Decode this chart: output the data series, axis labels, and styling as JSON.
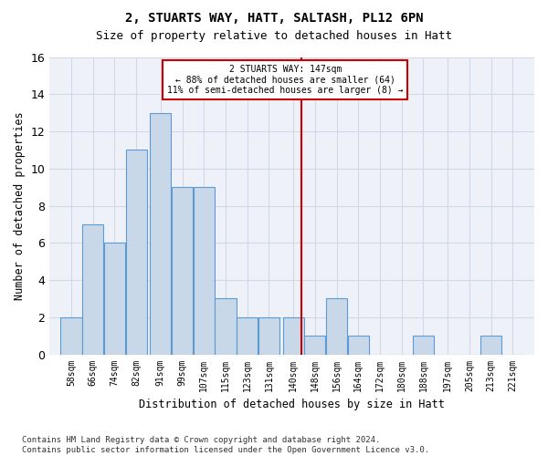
{
  "title1": "2, STUARTS WAY, HATT, SALTASH, PL12 6PN",
  "title2": "Size of property relative to detached houses in Hatt",
  "xlabel": "Distribution of detached houses by size in Hatt",
  "ylabel": "Number of detached properties",
  "bin_labels": [
    "58sqm",
    "66sqm",
    "74sqm",
    "82sqm",
    "91sqm",
    "99sqm",
    "107sqm",
    "115sqm",
    "123sqm",
    "131sqm",
    "140sqm",
    "148sqm",
    "156sqm",
    "164sqm",
    "172sqm",
    "180sqm",
    "188sqm",
    "197sqm",
    "205sqm",
    "213sqm",
    "221sqm"
  ],
  "bin_left_edges": [
    58,
    66,
    74,
    82,
    91,
    99,
    107,
    115,
    123,
    131,
    140,
    148,
    156,
    164,
    172,
    180,
    188,
    197,
    205,
    213,
    221
  ],
  "bin_widths": [
    8,
    8,
    8,
    8,
    8,
    8,
    8,
    8,
    8,
    8,
    8,
    8,
    8,
    8,
    8,
    8,
    8,
    8,
    8,
    8,
    8
  ],
  "counts": [
    2,
    7,
    6,
    11,
    13,
    9,
    9,
    3,
    2,
    2,
    2,
    1,
    3,
    1,
    0,
    0,
    1,
    0,
    0,
    1,
    0
  ],
  "bar_color": "#c8d8e8",
  "bar_edge_color": "#5b9bd5",
  "vline_x": 147,
  "vline_color": "#cc0000",
  "annotation_text": "2 STUARTS WAY: 147sqm\n← 88% of detached houses are smaller (64)\n11% of semi-detached houses are larger (8) →",
  "annotation_box_color": "#ffffff",
  "annotation_box_edge": "#cc0000",
  "ylim": [
    0,
    16
  ],
  "yticks": [
    0,
    2,
    4,
    6,
    8,
    10,
    12,
    14,
    16
  ],
  "footer": "Contains HM Land Registry data © Crown copyright and database right 2024.\nContains public sector information licensed under the Open Government Licence v3.0.",
  "grid_color": "#d0d8e8",
  "background_color": "#eef2f8"
}
